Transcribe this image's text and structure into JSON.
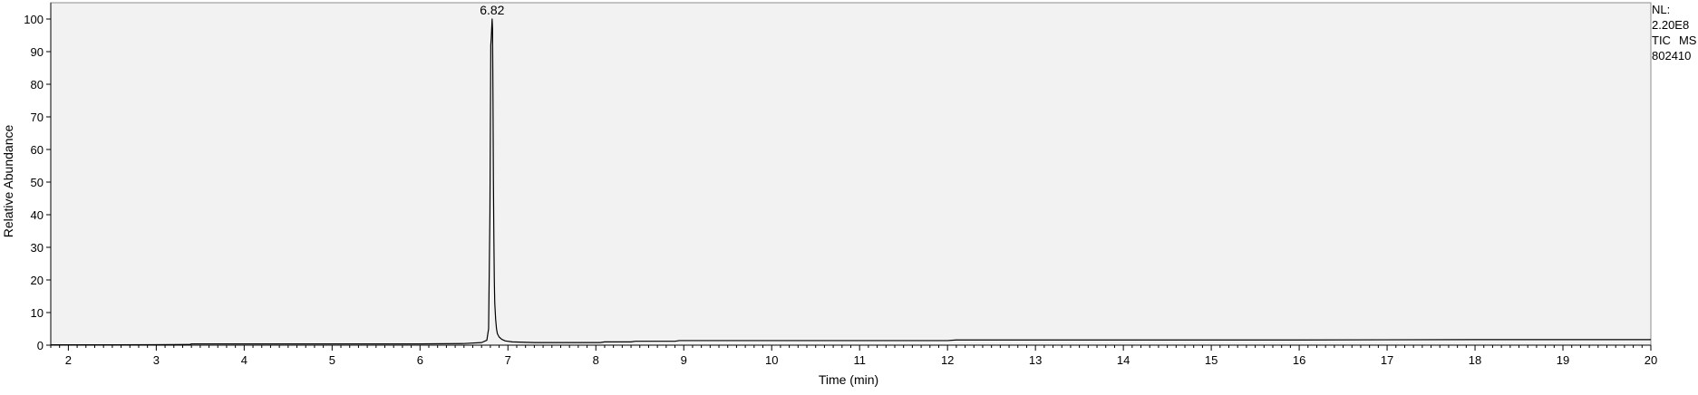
{
  "chart_data": {
    "type": "line",
    "xlabel": "Time (min)",
    "ylabel": "Relative Abundance",
    "xlim": [
      1.8,
      20
    ],
    "ylim": [
      0,
      100
    ],
    "x_ticks": [
      2,
      3,
      4,
      5,
      6,
      7,
      8,
      9,
      10,
      11,
      12,
      13,
      14,
      15,
      16,
      17,
      18,
      19,
      20
    ],
    "y_ticks": [
      0,
      10,
      20,
      30,
      40,
      50,
      60,
      70,
      80,
      90,
      100
    ],
    "grid": false,
    "plot_background": "#f2f2f2",
    "line_color": "#000000",
    "peak_annotations": [
      {
        "x": 6.82,
        "y": 100,
        "label": "6.82"
      }
    ],
    "series": [
      {
        "x": [
          1.8,
          2.5,
          3.0,
          3.38,
          3.4,
          4.0,
          5.0,
          6.0,
          6.5,
          6.7,
          6.76,
          6.78,
          6.795,
          6.805,
          6.81,
          6.815,
          6.82,
          6.825,
          6.83,
          6.835,
          6.84,
          6.845,
          6.85,
          6.86,
          6.87,
          6.88,
          6.9,
          6.93,
          6.97,
          7.05,
          7.3,
          7.8,
          8.05,
          8.1,
          8.4,
          8.45,
          8.9,
          8.95,
          10.0,
          12.0,
          12.1,
          14.0,
          16.0,
          18.0,
          19.5,
          20.0
        ],
        "y": [
          0.1,
          0.1,
          0.15,
          0.2,
          0.4,
          0.4,
          0.4,
          0.4,
          0.5,
          0.8,
          1.5,
          5,
          40,
          92,
          94,
          97,
          100,
          97,
          75,
          50,
          33,
          20,
          13,
          8,
          5,
          3.5,
          2.5,
          1.8,
          1.3,
          1.0,
          0.8,
          0.8,
          0.8,
          1.0,
          1.0,
          1.2,
          1.2,
          1.4,
          1.4,
          1.4,
          1.6,
          1.6,
          1.6,
          1.7,
          1.7,
          1.7
        ]
      }
    ]
  },
  "side_info": {
    "nl_label": "NL:",
    "nl_value": "2.20E8",
    "scan_type": "TIC",
    "scan_filter": "MS",
    "file_name": "802410"
  }
}
